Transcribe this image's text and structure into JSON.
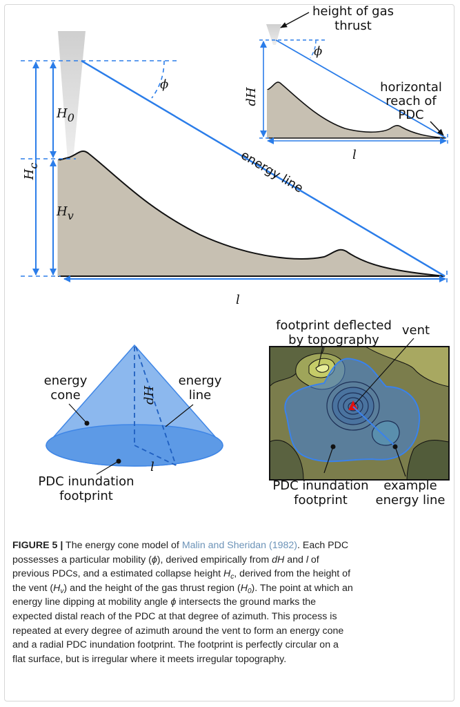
{
  "figure": {
    "profile": {
      "H_c": {
        "symbol": "H",
        "subscript": "c"
      },
      "H_0": {
        "symbol": "H",
        "subscript": "0"
      },
      "H_v": {
        "symbol": "H",
        "subscript": "v"
      },
      "phi": "ϕ",
      "energy_line": "energy line",
      "l": "l"
    },
    "inset": {
      "height_label": [
        "height of gas",
        "thrust"
      ],
      "phi": "ϕ",
      "dH": "dH",
      "reach_label": [
        "horizontal",
        "reach of",
        "PDC"
      ],
      "l": "l"
    },
    "cone": {
      "cone_label": [
        "energy",
        "cone"
      ],
      "line_label": [
        "energy",
        "line"
      ],
      "dH": "dH",
      "l": "l",
      "footprint_label": [
        "PDC inundation",
        "footprint"
      ]
    },
    "map": {
      "deflected_label": [
        "footprint deflected",
        "by topography"
      ],
      "vent_label": "vent",
      "footprint_label": [
        "PDC inundation",
        "footprint"
      ],
      "energy_line_label": [
        "example",
        "energy line"
      ]
    }
  },
  "caption": {
    "lines": [
      [
        "FIGURE 5 |",
        " The energy cone model of ",
        "Malin and Sheridan (1982)",
        ". Each PDC"
      ],
      [
        "possesses a particular mobility (",
        "ϕ",
        "), derived empirically from ",
        "dH",
        " and ",
        "l",
        " of"
      ],
      [
        "previous PDCs, and a estimated collapse height ",
        "H",
        "c",
        ", derived from the height of"
      ],
      [
        "the vent (",
        "H",
        "v",
        ") and the height of the gas thrust region (",
        "H",
        "0",
        "). The point at which an"
      ],
      [
        "energy line dipping at mobility angle ",
        "ϕ",
        " intersects the ground marks the"
      ],
      [
        "expected distal reach of the PDC at that degree of azimuth. This process is"
      ],
      [
        "repeated at every degree of azimuth around the vent to form an energy cone"
      ],
      [
        "and a radial PDC inundation footprint. The footprint is perfectly circular on a"
      ],
      [
        "flat surface, but is irregular where it meets irregular topography."
      ]
    ]
  }
}
